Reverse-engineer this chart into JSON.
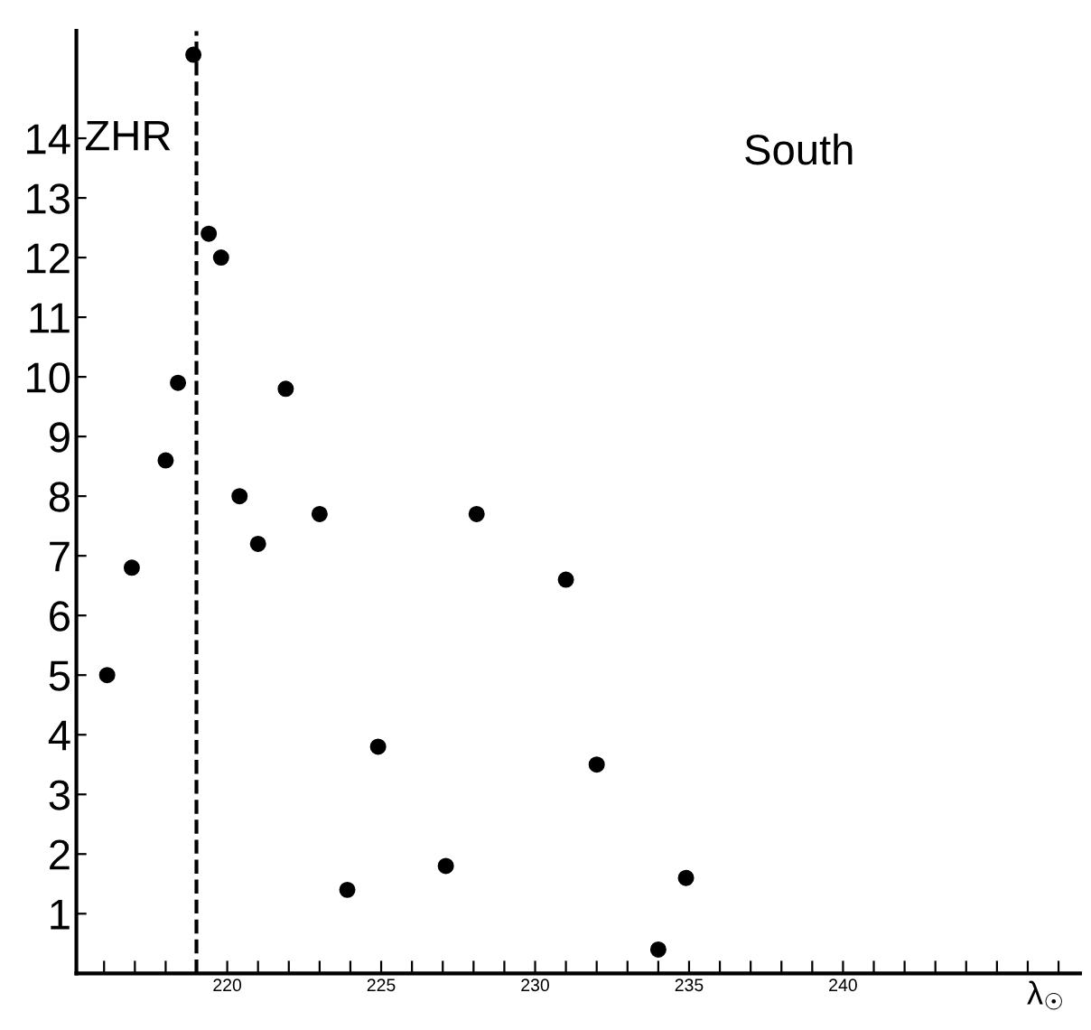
{
  "chart_data": {
    "type": "scatter",
    "xlabel": "λ$_{☉}$",
    "ylabel": "ZHR",
    "annotations": [
      "South"
    ],
    "x": [
      216.1,
      216.9,
      218.0,
      218.4,
      218.9,
      219.4,
      219.8,
      220.4,
      221.0,
      221.9,
      223.0,
      224.9,
      223.9,
      227.1,
      228.1,
      231.0,
      232.0,
      234.9,
      234.0
    ],
    "series": [
      {
        "color": "#000000",
        "values": [
          5.0,
          6.8,
          8.6,
          9.9,
          15.4,
          12.4,
          12.0,
          8.0,
          7.2,
          9.8,
          7.7,
          3.8,
          1.4,
          1.8,
          7.7,
          6.6,
          3.5,
          1.6,
          0.4
        ]
      }
    ],
    "marker": "circle",
    "xlim": [
      215.1,
      247.7
    ],
    "ylim": [
      0,
      15.8
    ],
    "xticks": [
      {
        "value": 216,
        "label": null
      },
      {
        "value": 217,
        "label": null
      },
      {
        "value": 218,
        "label": null
      },
      {
        "value": 219,
        "label": null
      },
      220,
      {
        "value": 221,
        "label": null
      },
      {
        "value": 222,
        "label": null
      },
      {
        "value": 223,
        "label": null
      },
      {
        "value": 224,
        "label": null
      },
      225,
      {
        "value": 226,
        "label": null
      },
      {
        "value": 227,
        "label": null
      },
      {
        "value": 228,
        "label": null
      },
      {
        "value": 229,
        "label": null
      },
      230,
      {
        "value": 231,
        "label": null
      },
      {
        "value": 232,
        "label": null
      },
      {
        "value": 233,
        "label": null
      },
      {
        "value": 234,
        "label": null
      },
      235,
      {
        "value": 236,
        "label": null
      },
      {
        "value": 237,
        "label": null
      },
      {
        "value": 238,
        "label": null
      },
      {
        "value": 239,
        "label": null
      },
      240,
      {
        "value": 241,
        "label": null
      },
      {
        "value": 242,
        "label": null
      },
      {
        "value": 243,
        "label": null
      },
      {
        "value": 244,
        "label": null
      },
      {
        "value": 245,
        "label": null
      },
      {
        "value": 246,
        "label": null
      },
      {
        "value": 247,
        "label": null
      }
    ],
    "yticks": [
      1,
      2,
      3,
      4,
      5,
      6,
      7,
      8,
      9,
      10,
      11,
      12,
      13,
      14
    ],
    "ref_lines": [
      {
        "axis": "x",
        "value": 219,
        "label": null,
        "color": "#000000",
        "line_style": "dashed"
      }
    ],
    "grid": false,
    "legend": false
  }
}
